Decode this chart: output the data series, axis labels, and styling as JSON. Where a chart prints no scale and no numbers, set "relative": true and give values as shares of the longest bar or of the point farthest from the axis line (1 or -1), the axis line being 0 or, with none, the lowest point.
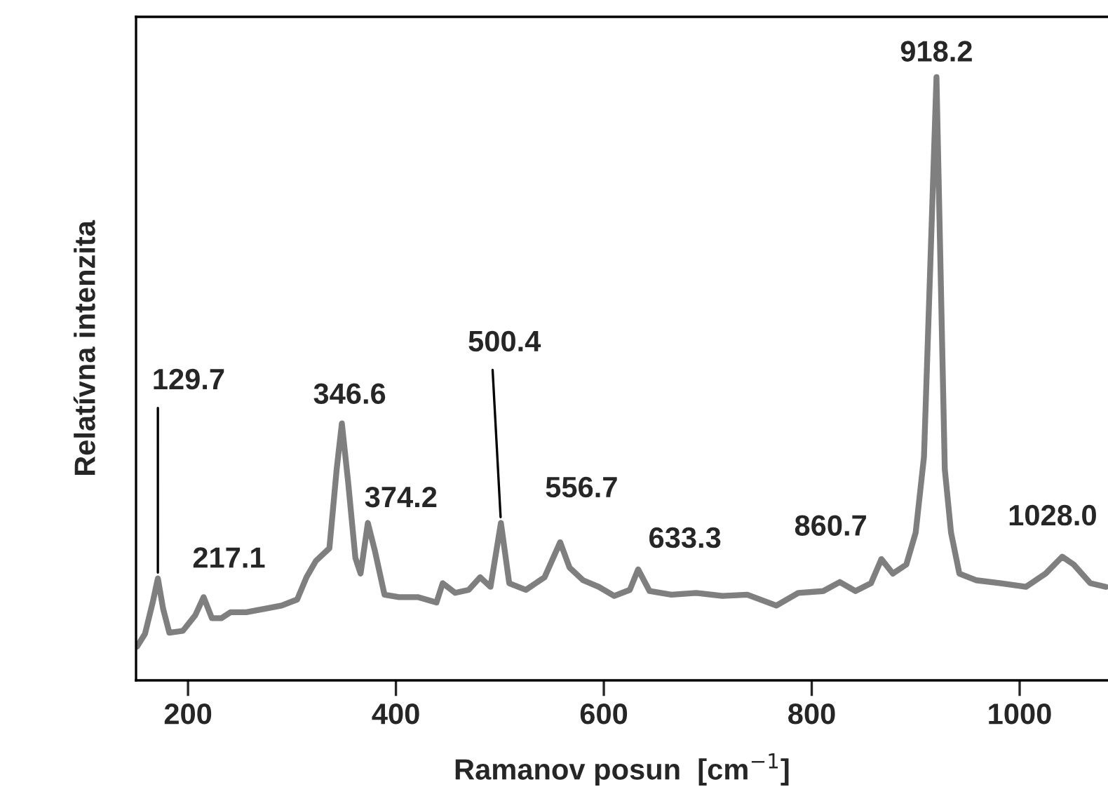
{
  "chart_data": {
    "type": "line",
    "relative": true,
    "xlabel": "Ramanov posun  [cm$^{−1}$]",
    "ylabel": "Relatívna intenzita",
    "xlim": [
      150,
      1085
    ],
    "xticks": [
      200,
      400,
      600,
      800,
      1000
    ],
    "grid": false,
    "legend": false,
    "marker": "none",
    "line_style": "solid",
    "series": [
      {
        "color": "#7f7f7f",
        "x": [
          151,
          158.6,
          166,
          171,
          176,
          182,
          195,
          207,
          215,
          223,
          232,
          241,
          256,
          275,
          290,
          305,
          314,
          323,
          336,
          343,
          348,
          354,
          361,
          366,
          373,
          380,
          389,
          403,
          421,
          439,
          445,
          457,
          470,
          481,
          491,
          501,
          509,
          525,
          543,
          558,
          567,
          580,
          595,
          610,
          625,
          633,
          644,
          665,
          689,
          714,
          738,
          766,
          787,
          811,
          827,
          842,
          857,
          867,
          878,
          891,
          900,
          908,
          920,
          928,
          934,
          942,
          958,
          982,
          1006,
          1025,
          1041,
          1052,
          1068,
          1083
        ],
        "values": [
          0.056,
          0.077,
          0.129,
          0.169,
          0.119,
          0.079,
          0.082,
          0.108,
          0.138,
          0.103,
          0.103,
          0.113,
          0.113,
          0.119,
          0.124,
          0.134,
          0.171,
          0.198,
          0.219,
          0.35,
          0.426,
          0.329,
          0.203,
          0.177,
          0.261,
          0.213,
          0.142,
          0.138,
          0.138,
          0.129,
          0.161,
          0.145,
          0.15,
          0.171,
          0.155,
          0.261,
          0.161,
          0.15,
          0.171,
          0.229,
          0.187,
          0.166,
          0.155,
          0.14,
          0.15,
          0.184,
          0.148,
          0.142,
          0.145,
          0.14,
          0.142,
          0.124,
          0.145,
          0.148,
          0.163,
          0.148,
          0.161,
          0.201,
          0.177,
          0.192,
          0.245,
          0.371,
          1.0,
          0.35,
          0.245,
          0.177,
          0.166,
          0.161,
          0.155,
          0.177,
          0.205,
          0.192,
          0.161,
          0.155
        ]
      }
    ],
    "annotations": [
      {
        "text": "129.7",
        "x": 171,
        "y": 0.169
      },
      {
        "text": "217.1",
        "x": 215,
        "y": 0.138
      },
      {
        "text": "346.6",
        "x": 348,
        "y": 0.426
      },
      {
        "text": "374.2",
        "x": 373,
        "y": 0.261
      },
      {
        "text": "500.4",
        "x": 501,
        "y": 0.261
      },
      {
        "text": "556.7",
        "x": 558,
        "y": 0.229
      },
      {
        "text": "633.3",
        "x": 633,
        "y": 0.184
      },
      {
        "text": "860.7",
        "x": 867,
        "y": 0.201
      },
      {
        "text": "918.2",
        "x": 920,
        "y": 1.0
      },
      {
        "text": "1028.0",
        "x": 1041,
        "y": 0.205
      }
    ]
  }
}
